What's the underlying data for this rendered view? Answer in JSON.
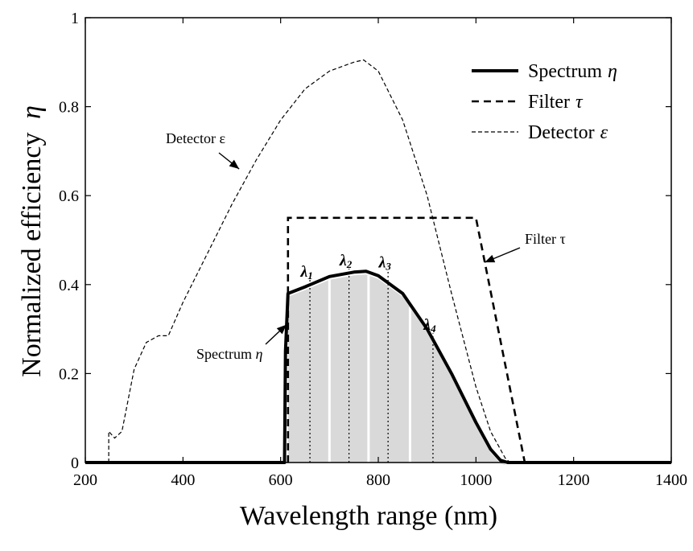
{
  "chart_data": {
    "type": "line",
    "title": "",
    "xlabel": "Wavelength range (nm)",
    "ylabel_text": "Normalized efficiency",
    "ylabel_symbol": "η",
    "xlim": [
      200,
      1400
    ],
    "ylim": [
      0,
      1
    ],
    "xticks": [
      200,
      400,
      600,
      800,
      1000,
      1200,
      1400
    ],
    "xtick_labels": [
      "200",
      "400",
      "600",
      "800",
      "1000",
      "1200",
      "1400"
    ],
    "yticks": [
      0,
      0.2,
      0.4,
      0.6,
      0.8,
      1
    ],
    "ytick_labels": [
      "0",
      "0.2",
      "0.4",
      "0.6",
      "0.8",
      "1"
    ],
    "grid": false,
    "legend_position": "top-right",
    "series": [
      {
        "name": "Spectrum",
        "symbol": "η",
        "style": "solid-thick",
        "points": [
          [
            200,
            0
          ],
          [
            608,
            0
          ],
          [
            610,
            0.25
          ],
          [
            615,
            0.38
          ],
          [
            650,
            0.395
          ],
          [
            700,
            0.418
          ],
          [
            750,
            0.428
          ],
          [
            775,
            0.43
          ],
          [
            800,
            0.42
          ],
          [
            850,
            0.38
          ],
          [
            900,
            0.3
          ],
          [
            950,
            0.2
          ],
          [
            1000,
            0.09
          ],
          [
            1030,
            0.03
          ],
          [
            1050,
            0.005
          ],
          [
            1065,
            0
          ],
          [
            1400,
            0
          ]
        ]
      },
      {
        "name": "Filter",
        "symbol": "τ",
        "style": "dashed",
        "points": [
          [
            615,
            0
          ],
          [
            615,
            0.55
          ],
          [
            1000,
            0.55
          ],
          [
            1100,
            0
          ]
        ]
      },
      {
        "name": "Detector",
        "symbol": "ε",
        "style": "dashed-thin",
        "points": [
          [
            248,
            0
          ],
          [
            248,
            0.07
          ],
          [
            260,
            0.055
          ],
          [
            275,
            0.07
          ],
          [
            300,
            0.21
          ],
          [
            325,
            0.27
          ],
          [
            350,
            0.285
          ],
          [
            370,
            0.285
          ],
          [
            400,
            0.36
          ],
          [
            450,
            0.47
          ],
          [
            500,
            0.58
          ],
          [
            550,
            0.68
          ],
          [
            600,
            0.77
          ],
          [
            650,
            0.84
          ],
          [
            700,
            0.88
          ],
          [
            750,
            0.9
          ],
          [
            770,
            0.905
          ],
          [
            800,
            0.88
          ],
          [
            850,
            0.77
          ],
          [
            900,
            0.6
          ],
          [
            950,
            0.38
          ],
          [
            1000,
            0.17
          ],
          [
            1030,
            0.07
          ],
          [
            1060,
            0.01
          ],
          [
            1070,
            0
          ]
        ]
      }
    ],
    "legend": [
      {
        "label": "Spectrum",
        "symbol": "η",
        "style": "solid-thick"
      },
      {
        "label": "Filter",
        "symbol": "τ",
        "style": "dashed"
      },
      {
        "label": "Detector",
        "symbol": "ε",
        "style": "dashed-thin"
      }
    ],
    "shaded_region": {
      "from": 615,
      "to": 1060,
      "separators": [
        700,
        780,
        865
      ],
      "color": "#d9d9d9"
    },
    "markers": [
      {
        "label": "λ",
        "sub": "1",
        "x": 660,
        "y": 0.4
      },
      {
        "label": "λ",
        "sub": "2",
        "x": 740,
        "y": 0.425
      },
      {
        "label": "λ",
        "sub": "3",
        "x": 820,
        "y": 0.42
      },
      {
        "label": "λ",
        "sub": "4",
        "x": 912,
        "y": 0.28
      }
    ],
    "annotations": [
      {
        "text": "Detector ε",
        "arrow_to": [
          515,
          0.66
        ]
      },
      {
        "text": "Filter  τ",
        "arrow_to": [
          1018,
          0.45
        ]
      },
      {
        "text": "Spectrum ",
        "symbol": "η",
        "arrow_to": [
          612,
          0.31
        ]
      }
    ]
  }
}
